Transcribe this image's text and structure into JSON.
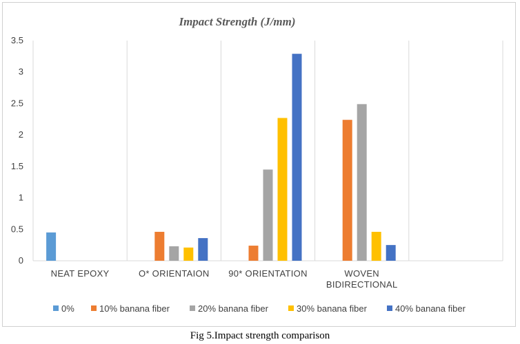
{
  "caption": "Fig 5.Impact strength comparison",
  "chart_data": {
    "type": "bar",
    "title": "Impact Strength (J/mm)",
    "xlabel": "",
    "ylabel": "",
    "ylim": [
      0,
      3.5
    ],
    "yticks": [
      "0",
      "0.5",
      "1",
      "1.5",
      "2",
      "2.5",
      "3",
      "3.5"
    ],
    "grid": "vertical",
    "legend_position": "bottom",
    "categories": [
      [
        "NEAT EPOXY"
      ],
      [
        "O* ORIENTAION"
      ],
      [
        "90* ORIENTATION"
      ],
      [
        "WOVEN",
        "BIDIRECTIONAL"
      ],
      [
        ""
      ]
    ],
    "series": [
      {
        "name": "0%",
        "color": "#5B9BD5",
        "values": [
          0.45,
          null,
          null,
          null,
          null
        ]
      },
      {
        "name": "10% banana fiber",
        "color": "#ED7D31",
        "values": [
          null,
          0.46,
          0.24,
          2.24,
          null
        ]
      },
      {
        "name": "20% banana fiber",
        "color": "#A5A5A5",
        "values": [
          null,
          0.23,
          1.45,
          2.49,
          null
        ]
      },
      {
        "name": "30% banana fiber",
        "color": "#FFC000",
        "values": [
          null,
          0.21,
          2.27,
          0.46,
          null
        ]
      },
      {
        "name": "40% banana fiber",
        "color": "#4472C4",
        "values": [
          null,
          0.36,
          3.29,
          0.25,
          null
        ]
      }
    ]
  }
}
